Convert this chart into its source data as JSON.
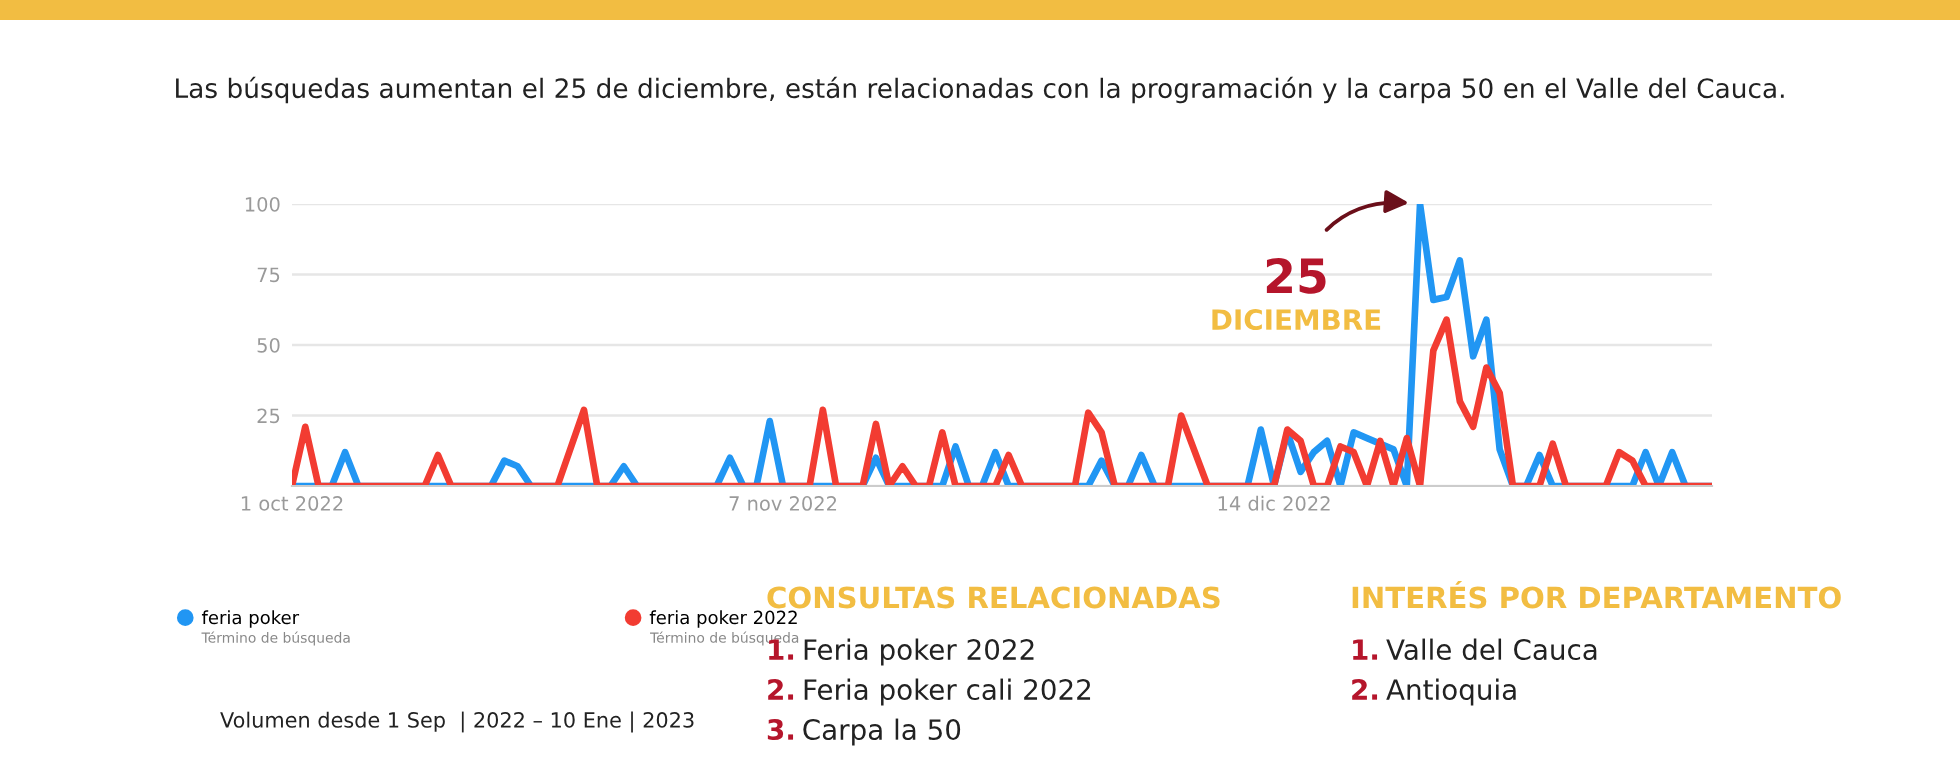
{
  "chart_data": [
    {
      "type": "line",
      "title": "Las búsquedas aumentan el 25 de diciembre, están relacionadas con la programación y la carpa 50 en el Valle del Cauca.",
      "xlim": [
        "2022-10-01",
        "2023-01-16"
      ],
      "xticks": [
        {
          "value": "2022-10-01",
          "label": "1 oct 2022"
        },
        {
          "value": "2022-11-07",
          "label": "7 nov 2022"
        },
        {
          "value": "2022-12-14",
          "label": "14 dic 2022"
        }
      ],
      "ylim": [
        0,
        100
      ],
      "yticks": [
        {
          "value": 0,
          "label": null
        },
        25,
        50,
        75,
        100
      ],
      "grid": "y",
      "legend": "bottom left",
      "marker": "none",
      "line_style": "solid",
      "series": [
        {
          "name": "feria poker",
          "color": "#2196f3",
          "x": [
            "2022-10-01",
            "2022-10-04",
            "2022-10-05",
            "2022-10-06",
            "2022-10-16",
            "2022-10-17",
            "2022-10-18",
            "2022-10-19",
            "2022-10-25",
            "2022-10-26",
            "2022-10-27",
            "2022-11-02",
            "2022-11-03",
            "2022-11-04",
            "2022-11-05",
            "2022-11-06",
            "2022-11-07",
            "2022-11-13",
            "2022-11-14",
            "2022-11-15",
            "2022-11-19",
            "2022-11-20",
            "2022-11-21",
            "2022-11-22",
            "2022-11-23",
            "2022-11-24",
            "2022-11-30",
            "2022-12-01",
            "2022-12-02",
            "2022-12-03",
            "2022-12-04",
            "2022-12-05",
            "2022-12-12",
            "2022-12-13",
            "2022-12-14",
            "2022-12-15",
            "2022-12-16",
            "2022-12-17",
            "2022-12-18",
            "2022-12-19",
            "2022-12-20",
            "2022-12-21",
            "2022-12-23",
            "2022-12-24",
            "2022-12-25",
            "2022-12-26",
            "2022-12-27",
            "2022-12-28",
            "2022-12-29",
            "2022-12-30",
            "2022-12-31",
            "2023-01-01",
            "2023-01-02",
            "2023-01-03",
            "2023-01-04",
            "2023-01-10",
            "2023-01-11",
            "2023-01-12",
            "2023-01-13",
            "2023-01-14",
            "2023-01-16"
          ],
          "values": [
            0,
            0,
            12,
            0,
            0,
            9,
            7,
            0,
            0,
            7,
            0,
            0,
            10,
            0,
            0,
            23,
            0,
            0,
            10,
            0,
            0,
            14,
            0,
            0,
            12,
            0,
            0,
            9,
            0,
            0,
            11,
            0,
            0,
            20,
            0,
            19,
            5,
            12,
            16,
            0,
            19,
            17,
            13,
            0,
            100,
            66,
            67,
            80,
            46,
            59,
            13,
            0,
            0,
            11,
            0,
            0,
            12,
            0,
            12,
            0,
            0
          ]
        },
        {
          "name": "feria poker 2022",
          "color": "#f23c32",
          "x": [
            "2022-10-01",
            "2022-10-02",
            "2022-10-03",
            "2022-10-11",
            "2022-10-12",
            "2022-10-13",
            "2022-10-21",
            "2022-10-23",
            "2022-10-24",
            "2022-11-09",
            "2022-11-10",
            "2022-11-11",
            "2022-11-13",
            "2022-11-14",
            "2022-11-15",
            "2022-11-16",
            "2022-11-17",
            "2022-11-18",
            "2022-11-19",
            "2022-11-20",
            "2022-11-23",
            "2022-11-24",
            "2022-11-25",
            "2022-11-29",
            "2022-11-30",
            "2022-12-01",
            "2022-12-02",
            "2022-12-06",
            "2022-12-07",
            "2022-12-09",
            "2022-12-14",
            "2022-12-15",
            "2022-12-16",
            "2022-12-17",
            "2022-12-18",
            "2022-12-19",
            "2022-12-20",
            "2022-12-21",
            "2022-12-22",
            "2022-12-23",
            "2022-12-24",
            "2022-12-25",
            "2022-12-26",
            "2022-12-27",
            "2022-12-28",
            "2022-12-29",
            "2022-12-30",
            "2022-12-31",
            "2023-01-01",
            "2023-01-03",
            "2023-01-04",
            "2023-01-05",
            "2023-01-08",
            "2023-01-09",
            "2023-01-10",
            "2023-01-11",
            "2023-01-16"
          ],
          "values": [
            0,
            21,
            0,
            0,
            11,
            0,
            0,
            27,
            0,
            0,
            27,
            0,
            0,
            22,
            0,
            7,
            0,
            0,
            19,
            0,
            0,
            11,
            0,
            0,
            26,
            19,
            0,
            0,
            25,
            0,
            0,
            20,
            16,
            0,
            0,
            14,
            12,
            0,
            16,
            0,
            17,
            0,
            48,
            59,
            30,
            21,
            42,
            33,
            0,
            0,
            15,
            0,
            0,
            12,
            9,
            0,
            0
          ]
        }
      ],
      "annotations": [
        {
          "text": "25",
          "x": "2022-12-25",
          "y": 100
        },
        "DICIEMBRE",
        "Término de búsqueda",
        "Término de búsqueda",
        "Volumen desde 1 Sep  | 2022 – 10 Ene | 2023"
      ]
    },
    {
      "type": "other",
      "title": "CONSULTAS RELACIONADAS",
      "annotations": [
        "1. Feria poker 2022",
        "2. Feria poker cali 2022",
        "3. Carpa la 50"
      ]
    },
    {
      "type": "other",
      "title": "INTERÉS POR DEPARTAMENTO",
      "annotations": [
        "1. Valle del Cauca",
        "2. Antioquia"
      ]
    }
  ]
}
